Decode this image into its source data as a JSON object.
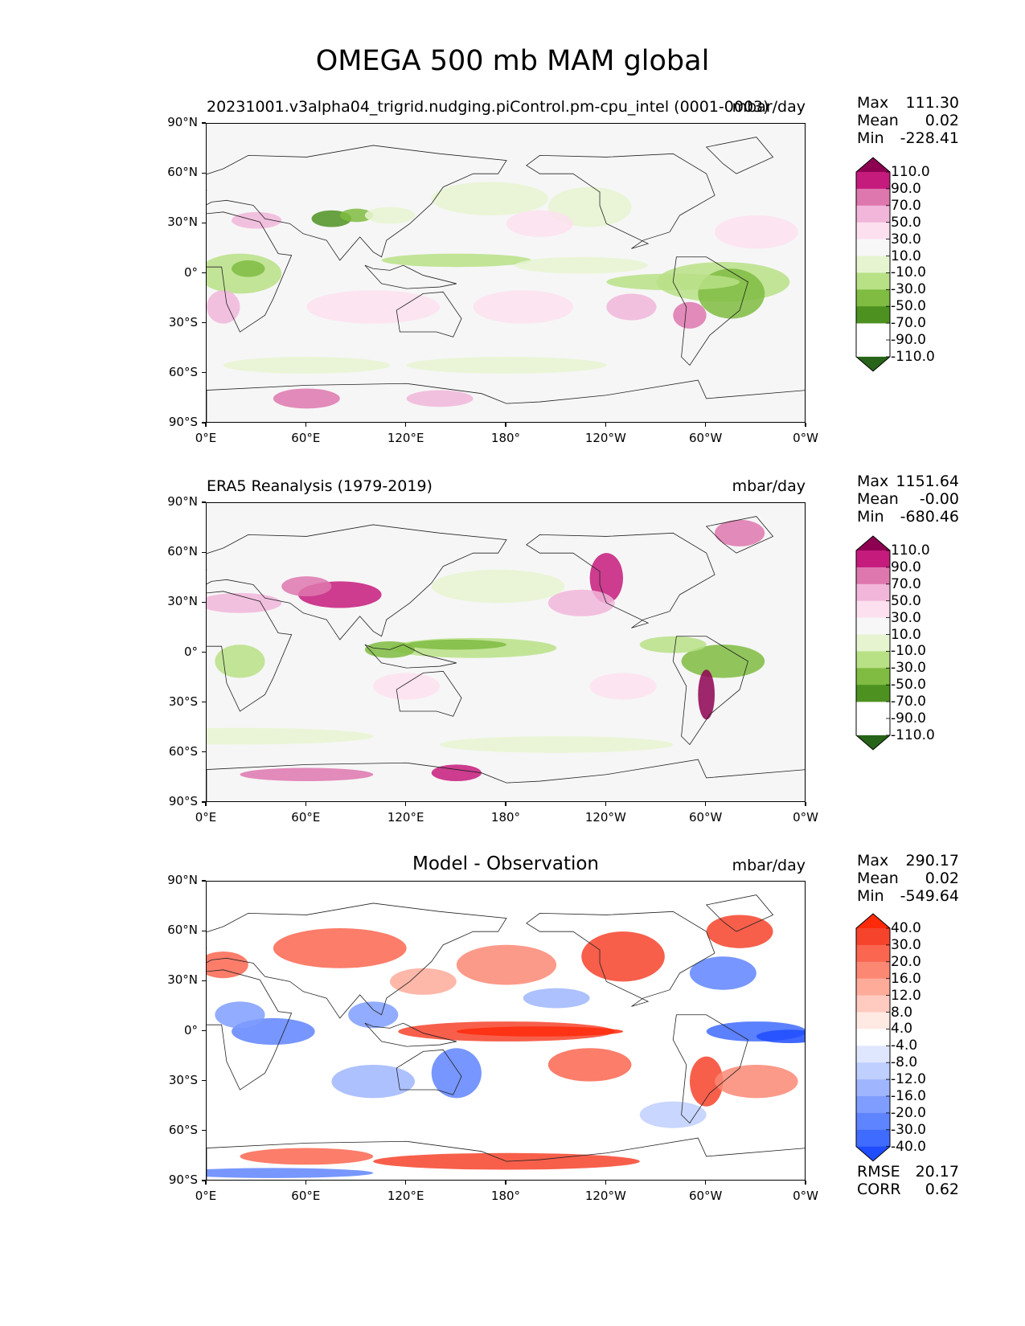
{
  "title": "OMEGA 500 mb MAM global",
  "panels": [
    {
      "title": "20231001.v3alpha04_trigrid.nudging.piControl.pm-cpu_intel (0001-0003)",
      "units": "mbar/day",
      "stats": [
        {
          "label": "Max",
          "value": "111.30"
        },
        {
          "label": "Mean",
          "value": "0.02"
        },
        {
          "label": "Min",
          "value": "-228.41"
        }
      ],
      "colorbar": {
        "ticks": [
          "110.0",
          "90.0",
          "70.0",
          "50.0",
          "30.0",
          "10.0",
          "-10.0",
          "-30.0",
          "-50.0",
          "-70.0",
          "-90.0",
          "-110.0"
        ],
        "colors": [
          "#8e0152",
          "#c51b7d",
          "#de77ae",
          "#f1b6da",
          "#fde0ef",
          "#f7f7f7",
          "#e6f5d0",
          "#b8e186",
          "#7fbc41",
          "#4d9221",
          "#276419"
        ]
      }
    },
    {
      "title": "ERA5 Reanalysis (1979-2019)",
      "units": "mbar/day",
      "stats": [
        {
          "label": "Max",
          "value": "1151.64"
        },
        {
          "label": "Mean",
          "value": "-0.00"
        },
        {
          "label": "Min",
          "value": "-680.46"
        }
      ],
      "colorbar": {
        "ticks": [
          "110.0",
          "90.0",
          "70.0",
          "50.0",
          "30.0",
          "10.0",
          "-10.0",
          "-30.0",
          "-50.0",
          "-70.0",
          "-90.0",
          "-110.0"
        ],
        "colors": [
          "#8e0152",
          "#c51b7d",
          "#de77ae",
          "#f1b6da",
          "#fde0ef",
          "#f7f7f7",
          "#e6f5d0",
          "#b8e186",
          "#7fbc41",
          "#4d9221",
          "#276419"
        ]
      }
    },
    {
      "title": "Model - Observation",
      "units": "mbar/day",
      "stats": [
        {
          "label": "Max",
          "value": "290.17"
        },
        {
          "label": "Mean",
          "value": "0.02"
        },
        {
          "label": "Min",
          "value": "-549.64"
        }
      ],
      "extra_stats": [
        {
          "label": "RMSE",
          "value": "20.17"
        },
        {
          "label": "CORR",
          "value": "0.62"
        }
      ],
      "colorbar": {
        "ticks": [
          "40.0",
          "30.0",
          "20.0",
          "16.0",
          "12.0",
          "8.0",
          "4.0",
          "-4.0",
          "-8.0",
          "-12.0",
          "-16.0",
          "-20.0",
          "-30.0",
          "-40.0"
        ],
        "colors": [
          "#ff2a0a",
          "#f6432c",
          "#fa6650",
          "#fc8874",
          "#feab9a",
          "#ffcabf",
          "#ffe9e3",
          "#ffffff",
          "#dfe7ff",
          "#bfcfff",
          "#9fb6ff",
          "#7f9dff",
          "#5f84ff",
          "#3f6bff",
          "#1f4cff"
        ]
      }
    }
  ],
  "axes": {
    "xticks": [
      "0°E",
      "60°E",
      "120°E",
      "180°",
      "120°W",
      "60°W",
      "0°W"
    ],
    "yticks": [
      "90°N",
      "60°N",
      "30°N",
      "0°",
      "30°S",
      "60°S",
      "90°S"
    ]
  },
  "map_colors": {
    "ocean": "#f6f6f6",
    "coast": "#222222"
  }
}
